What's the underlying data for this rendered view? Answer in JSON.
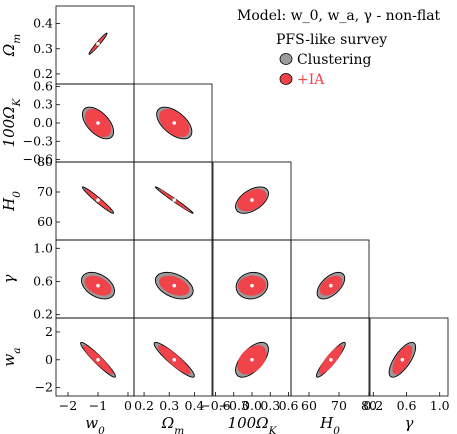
{
  "chart_data": {
    "type": "corner-plot",
    "model_label": "Model: w_0, w_a, γ - non-flat",
    "survey_label": "PFS-like survey",
    "legend": [
      {
        "name": "Clustering",
        "color": "#9b9b9b"
      },
      {
        "name": "+IA",
        "color": "#f0434a"
      }
    ],
    "colors": {
      "outer": "#9b9b9b",
      "inner": "#f0434a",
      "legend_text_ia": "#f0434a",
      "center_marker": "#ffffff"
    },
    "parameters": [
      {
        "name": "w0",
        "label": "w_0",
        "fiducial": -1.0,
        "range": [
          -2.4,
          0.2
        ],
        "ticks": [
          -2,
          -1,
          0
        ],
        "tick_labels": [
          "−2",
          "−1",
          "0"
        ]
      },
      {
        "name": "Om",
        "label": "Ω_m",
        "fiducial": 0.32,
        "range": [
          0.16,
          0.47
        ],
        "ticks": [
          0.2,
          0.3,
          0.4
        ],
        "tick_labels": [
          "0.2",
          "0.3",
          "0.4"
        ]
      },
      {
        "name": "OK100",
        "label": "100Ω_K",
        "fiducial": 0.0,
        "range": [
          -0.64,
          0.64
        ],
        "ticks": [
          -0.6,
          -0.3,
          0.0,
          0.3,
          0.6
        ],
        "tick_labels": [
          "−0.6",
          "−0.3",
          "0.0",
          "0.3",
          "0.6"
        ]
      },
      {
        "name": "H0",
        "label": "H_0",
        "fiducial": 67.3,
        "range": [
          54,
          80
        ],
        "ticks": [
          60,
          70,
          80
        ],
        "tick_labels": [
          "60",
          "70",
          "80"
        ]
      },
      {
        "name": "gamma",
        "label": "γ",
        "fiducial": 0.55,
        "range": [
          0.16,
          1.1
        ],
        "ticks": [
          0.2,
          0.6,
          1.0
        ],
        "tick_labels": [
          "0.2",
          "0.6",
          "1.0"
        ]
      },
      {
        "name": "wa",
        "label": "w_a",
        "fiducial": 0.0,
        "range": [
          -2.6,
          3.0
        ],
        "ticks": [
          -2,
          0,
          2
        ],
        "tick_labels": [
          "−2",
          "0",
          "2"
        ]
      }
    ],
    "contours": [
      {
        "x": "w0",
        "y": "Om",
        "outer": {
          "sx": 0.3,
          "sy": 0.042,
          "rho": 0.97
        },
        "inner": {
          "sx": 0.24,
          "sy": 0.035,
          "rho": 0.97
        }
      },
      {
        "x": "w0",
        "y": "OK100",
        "outer": {
          "sx": 0.52,
          "sy": 0.26,
          "rho": -0.55
        },
        "inner": {
          "sx": 0.44,
          "sy": 0.23,
          "rho": -0.45
        }
      },
      {
        "x": "Om",
        "y": "OK100",
        "outer": {
          "sx": 0.07,
          "sy": 0.26,
          "rho": -0.55
        },
        "inner": {
          "sx": 0.06,
          "sy": 0.23,
          "rho": -0.45
        }
      },
      {
        "x": "w0",
        "y": "H0",
        "outer": {
          "sx": 0.52,
          "sy": 4.4,
          "rho": -0.97
        },
        "inner": {
          "sx": 0.45,
          "sy": 3.8,
          "rho": -0.97
        }
      },
      {
        "x": "Om",
        "y": "H0",
        "outer": {
          "sx": 0.075,
          "sy": 4.4,
          "rho": -0.99
        },
        "inner": {
          "sx": 0.062,
          "sy": 3.8,
          "rho": -0.99
        }
      },
      {
        "x": "OK100",
        "y": "H0",
        "outer": {
          "sx": 0.27,
          "sy": 4.4,
          "rho": 0.5
        },
        "inner": {
          "sx": 0.24,
          "sy": 3.7,
          "rho": 0.4
        }
      },
      {
        "x": "w0",
        "y": "gamma",
        "outer": {
          "sx": 0.55,
          "sy": 0.16,
          "rho": -0.4
        },
        "inner": {
          "sx": 0.45,
          "sy": 0.12,
          "rho": -0.4
        }
      },
      {
        "x": "Om",
        "y": "gamma",
        "outer": {
          "sx": 0.075,
          "sy": 0.16,
          "rho": -0.4
        },
        "inner": {
          "sx": 0.06,
          "sy": 0.12,
          "rho": -0.4
        }
      },
      {
        "x": "OK100",
        "y": "gamma",
        "outer": {
          "sx": 0.26,
          "sy": 0.16,
          "rho": 0.1
        },
        "inner": {
          "sx": 0.23,
          "sy": 0.12,
          "rho": 0.05
        }
      },
      {
        "x": "H0",
        "y": "gamma",
        "outer": {
          "sx": 4.6,
          "sy": 0.16,
          "rho": 0.55
        },
        "inner": {
          "sx": 3.8,
          "sy": 0.12,
          "rho": 0.45
        }
      },
      {
        "x": "w0",
        "y": "wa",
        "outer": {
          "sx": 0.58,
          "sy": 1.25,
          "rho": -0.95
        },
        "inner": {
          "sx": 0.5,
          "sy": 1.05,
          "rho": -0.93
        }
      },
      {
        "x": "Om",
        "y": "wa",
        "outer": {
          "sx": 0.08,
          "sy": 1.25,
          "rho": -0.92
        },
        "inner": {
          "sx": 0.065,
          "sy": 1.05,
          "rho": -0.88
        }
      },
      {
        "x": "OK100",
        "y": "wa",
        "outer": {
          "sx": 0.27,
          "sy": 1.25,
          "rho": 0.6
        },
        "inner": {
          "sx": 0.24,
          "sy": 1.05,
          "rho": 0.4
        }
      },
      {
        "x": "H0",
        "y": "wa",
        "outer": {
          "sx": 4.8,
          "sy": 1.25,
          "rho": 0.92
        },
        "inner": {
          "sx": 4.0,
          "sy": 1.05,
          "rho": 0.85
        }
      },
      {
        "x": "gamma",
        "y": "wa",
        "outer": {
          "sx": 0.16,
          "sy": 1.25,
          "rho": 0.72
        },
        "inner": {
          "sx": 0.12,
          "sy": 1.05,
          "rho": 0.65
        }
      }
    ]
  }
}
